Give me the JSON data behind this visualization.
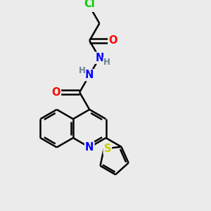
{
  "bg_color": "#ebebeb",
  "bond_color": "#000000",
  "bond_width": 1.8,
  "atom_colors": {
    "N": "#0000ff",
    "O": "#ff0000",
    "S": "#cccc00",
    "Cl": "#00cc00",
    "C": "#000000",
    "H": "#708090"
  },
  "font_size": 9.5
}
